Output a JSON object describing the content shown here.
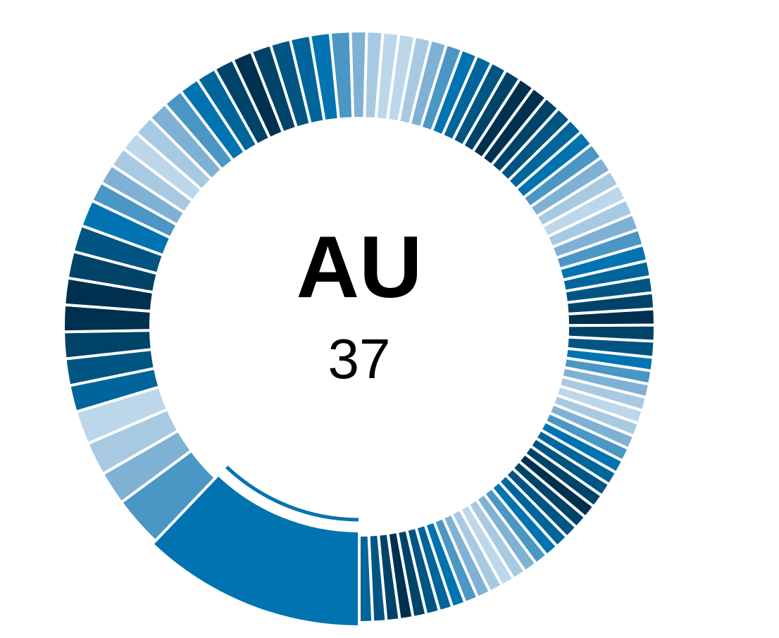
{
  "chart_data": {
    "type": "pie",
    "style": "donut",
    "center_label": "AU",
    "center_value": "37",
    "highlight_index": 0,
    "palette": [
      "#0073b0",
      "#4a96c4",
      "#7fb1d4",
      "#a8c9e2",
      "#bdd7ea",
      "#00659a",
      "#005582",
      "#004369",
      "#00304f"
    ],
    "values": [
      16.6,
      3.8,
      2.5,
      2.5,
      2.5,
      2.0,
      2.0,
      2.0,
      2.0,
      2.0,
      2.0,
      2.0,
      2.0,
      1.5,
      1.5,
      1.5,
      1.5,
      1.5,
      1.5,
      1.5,
      1.5,
      1.5,
      1.5,
      1.5,
      1.5,
      1.5,
      1.5,
      1.5,
      1.5,
      1.2,
      1.2,
      1.2,
      1.2,
      1.2,
      1.2,
      1.2,
      1.2,
      1.2,
      1.2,
      1.2,
      1.2,
      1.2,
      1.2,
      1.2,
      1.2,
      1.2,
      1.2,
      1.2,
      1.2,
      1.2,
      1.2,
      1.2,
      1.2,
      1.2,
      1.2,
      1.2,
      1.2,
      1.2,
      1.2,
      1.2,
      1.0,
      1.0,
      1.0,
      1.0,
      1.0,
      1.0,
      1.0,
      1.0,
      1.0,
      1.0,
      1.0,
      1.0,
      1.0,
      1.0,
      1.0,
      1.0,
      1.0,
      1.0,
      1.0,
      1.0,
      1.0,
      1.0,
      1.0,
      1.0,
      1.0,
      1.0,
      1.0,
      1.0,
      1.0,
      1.0,
      1.0,
      1.0
    ],
    "colors": [
      "#0073b0",
      "#4a96c4",
      "#7fb1d4",
      "#a8c9e2",
      "#bdd7ea",
      "#00659a",
      "#005582",
      "#004369",
      "#00304f",
      "#00304f",
      "#004369",
      "#005582",
      "#0073b0",
      "#4a96c4",
      "#7fb1d4",
      "#a8c9e2",
      "#bdd7ea",
      "#a8c9e2",
      "#7fb1d4",
      "#4a96c4",
      "#0073b0",
      "#00659a",
      "#004369",
      "#00304f",
      "#004369",
      "#005582",
      "#00659a",
      "#0073b0",
      "#4a96c4",
      "#7fb1d4",
      "#a8c9e2",
      "#bdd7ea",
      "#bdd7ea",
      "#a8c9e2",
      "#7fb1d4",
      "#4a96c4",
      "#0073b0",
      "#00659a",
      "#005582",
      "#004369",
      "#00304f",
      "#00304f",
      "#004369",
      "#005582",
      "#00659a",
      "#0073b0",
      "#4a96c4",
      "#7fb1d4",
      "#a8c9e2",
      "#bdd7ea",
      "#a8c9e2",
      "#7fb1d4",
      "#4a96c4",
      "#0073b0",
      "#00659a",
      "#005582",
      "#004369",
      "#00304f",
      "#004369",
      "#005582",
      "#0073b0",
      "#4a96c4",
      "#7fb1d4",
      "#a8c9e2",
      "#bdd7ea",
      "#a8c9e2",
      "#7fb1d4",
      "#4a96c4",
      "#0073b0",
      "#00659a",
      "#005582",
      "#004369",
      "#00304f",
      "#004369",
      "#005582",
      "#00659a",
      "#0073b0",
      "#4a96c4",
      "#7fb1d4",
      "#a8c9e2",
      "#bdd7ea",
      "#a8c9e2",
      "#7fb1d4",
      "#4a96c4",
      "#0073b0",
      "#00659a",
      "#005582",
      "#004369",
      "#00304f",
      "#004369",
      "#005582",
      "#00659a"
    ]
  }
}
